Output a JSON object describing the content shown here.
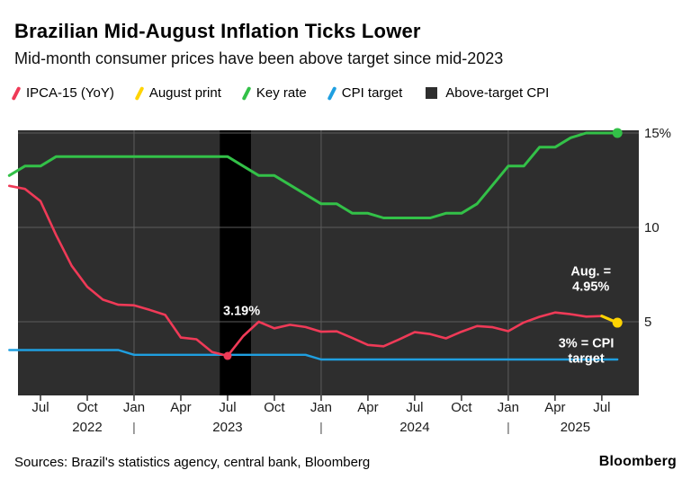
{
  "header": {
    "title": "Brazilian Mid-August Inflation Ticks Lower",
    "subtitle": "Mid-month consumer prices have been above target since mid-2023"
  },
  "legend": {
    "items": [
      {
        "label": "IPCA-15 (YoY)",
        "icon": "slash",
        "color": "#ef3a57"
      },
      {
        "label": "August print",
        "icon": "slash",
        "color": "#ffd402"
      },
      {
        "label": "Key rate",
        "icon": "slash",
        "color": "#33c148"
      },
      {
        "label": "CPI target",
        "icon": "slash",
        "color": "#1f9fe0"
      },
      {
        "label": "Above-target CPI",
        "icon": "square",
        "color": "#2e2e2e"
      }
    ]
  },
  "footer": {
    "sources": "Sources: Brazil's statistics agency, central bank, Bloomberg",
    "brand": "Bloomberg"
  },
  "chart_data": {
    "type": "line",
    "title": "Brazilian Mid-August Inflation Ticks Lower",
    "x_unit": "month",
    "x_start": "May 2022",
    "x_end": "Aug 2025",
    "ylim": [
      1,
      15.5
    ],
    "grid": true,
    "legend_position": "top",
    "colors": {
      "page_bg": "#ffffff",
      "plot_bg": "#000000",
      "shading": "#2e2e2e",
      "grid": "#5c5c5c",
      "axis_text": "#1a1a1a",
      "annotation_text": "#ffffff",
      "tick": "#333333"
    },
    "y_ticks": [
      {
        "label": "15%",
        "value": 15
      },
      {
        "label": "10",
        "value": 10
      },
      {
        "label": "5",
        "value": 5
      }
    ],
    "x_ticks": [
      {
        "label": "Jul",
        "index": 2
      },
      {
        "label": "Oct",
        "index": 5
      },
      {
        "label": "Jan",
        "index": 8
      },
      {
        "label": "Apr",
        "index": 11
      },
      {
        "label": "Jul",
        "index": 14
      },
      {
        "label": "Oct",
        "index": 17
      },
      {
        "label": "Jan",
        "index": 20
      },
      {
        "label": "Apr",
        "index": 23
      },
      {
        "label": "Jul",
        "index": 26
      },
      {
        "label": "Oct",
        "index": 29
      },
      {
        "label": "Jan",
        "index": 32
      },
      {
        "label": "Apr",
        "index": 35
      },
      {
        "label": "Jul",
        "index": 38
      }
    ],
    "year_labels": [
      {
        "label": "2022",
        "index": 5
      },
      {
        "label": "2023",
        "index": 14
      },
      {
        "label": "2024",
        "index": 26
      },
      {
        "label": "2025",
        "index": 36.3
      }
    ],
    "year_separators": [
      8,
      20,
      32
    ],
    "year_gridline_indexes": [
      8,
      20,
      32
    ],
    "shaded_regions": [
      {
        "from_index": -0.4,
        "to_index": 13.5
      },
      {
        "from_index": 15.5,
        "to_index": 41
      }
    ],
    "series": [
      {
        "key": "cpi-target-line",
        "name": "CPI target",
        "color": "#1f9fe0",
        "width": 2.4,
        "start_index": 0,
        "values": [
          3.5,
          3.5,
          3.5,
          3.5,
          3.5,
          3.5,
          3.5,
          3.5,
          3.25,
          3.25,
          3.25,
          3.25,
          3.25,
          3.25,
          3.25,
          3.25,
          3.25,
          3.25,
          3.25,
          3.25,
          3,
          3,
          3,
          3,
          3,
          3,
          3,
          3,
          3,
          3,
          3,
          3,
          3,
          3,
          3,
          3,
          3,
          3,
          3,
          3
        ]
      },
      {
        "key": "key-rate-line",
        "name": "Key rate",
        "color": "#33c148",
        "width": 3,
        "start_index": 0,
        "values": [
          12.75,
          13.25,
          13.25,
          13.75,
          13.75,
          13.75,
          13.75,
          13.75,
          13.75,
          13.75,
          13.75,
          13.75,
          13.75,
          13.75,
          13.75,
          13.25,
          12.75,
          12.75,
          12.25,
          11.75,
          11.25,
          11.25,
          10.75,
          10.75,
          10.5,
          10.5,
          10.5,
          10.5,
          10.75,
          10.75,
          11.25,
          12.25,
          13.25,
          13.25,
          14.25,
          14.25,
          14.75,
          15,
          15,
          15
        ]
      },
      {
        "key": "ipca15-line",
        "name": "IPCA-15 (YoY)",
        "color": "#ef3a57",
        "width": 2.6,
        "start_index": 0,
        "values": [
          12.2,
          12.04,
          11.39,
          9.6,
          7.96,
          6.85,
          6.17,
          5.9,
          5.87,
          5.63,
          5.36,
          4.16,
          4.07,
          3.4,
          3.19,
          4.24,
          5.0,
          4.65,
          4.84,
          4.72,
          4.47,
          4.49,
          4.14,
          3.77,
          3.7,
          4.06,
          4.45,
          4.35,
          4.12,
          4.47,
          4.77,
          4.71,
          4.5,
          4.96,
          5.26,
          5.49,
          5.4,
          5.27,
          5.3
        ]
      },
      {
        "key": "august-print-line",
        "name": "August print",
        "color": "#ffd402",
        "width": 3.2,
        "start_index": 38,
        "values": [
          5.3,
          4.95
        ]
      }
    ],
    "markers": [
      {
        "index": 14,
        "value": 3.19,
        "color": "#ef3a57",
        "r": 4.5
      },
      {
        "index": 39,
        "value": 4.95,
        "color": "#ffd402",
        "r": 5.5
      },
      {
        "index": 39,
        "value": 15,
        "color": "#33c148",
        "r": 5.5
      }
    ],
    "annotations": [
      {
        "lines": [
          "3.19%"
        ],
        "index": 14.9,
        "value": 5.35
      },
      {
        "lines": [
          "Aug. =",
          "4.95%"
        ],
        "index": 37.3,
        "value": 7.45
      },
      {
        "lines": [
          "3% = CPI",
          "target"
        ],
        "index": 37.0,
        "value": 3.65
      }
    ]
  }
}
